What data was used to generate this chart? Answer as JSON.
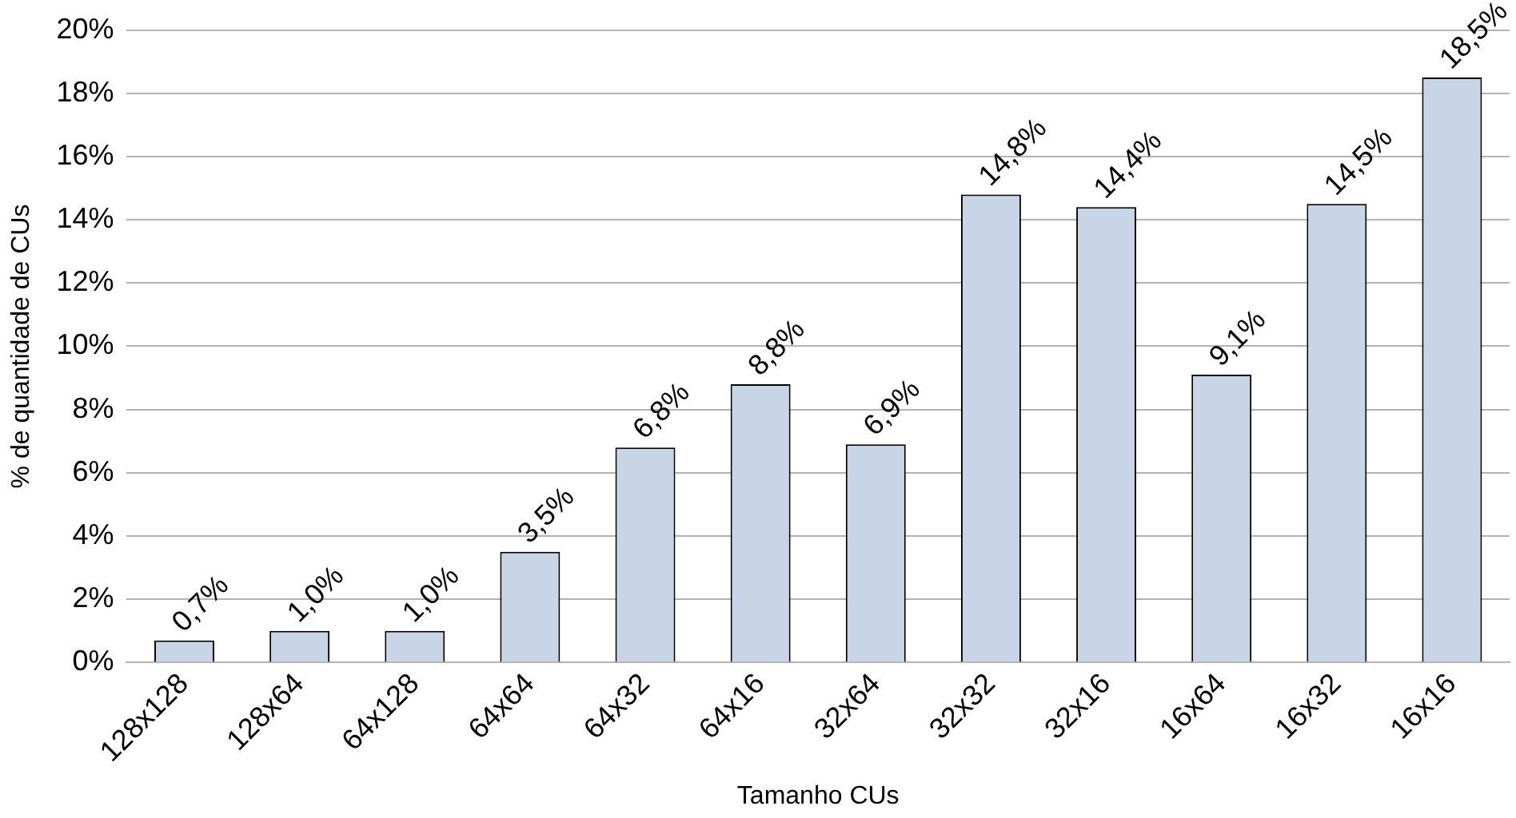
{
  "chart_data": {
    "type": "bar",
    "xlabel": "Tamanho CUs",
    "ylabel": "% de quantidade de CUs",
    "categories": [
      "128x128",
      "128x64",
      "64x128",
      "64x64",
      "64x32",
      "64x16",
      "32x64",
      "32x32",
      "32x16",
      "16x64",
      "16x32",
      "16x16"
    ],
    "values": [
      0.7,
      1.0,
      1.0,
      3.5,
      6.8,
      8.8,
      6.9,
      14.8,
      14.4,
      9.1,
      14.5,
      18.5
    ],
    "value_labels": [
      "0,7%",
      "1,0%",
      "1,0%",
      "3,5%",
      "6,8%",
      "8,8%",
      "6,9%",
      "14,8%",
      "14,4%",
      "9,1%",
      "14,5%",
      "18,5%"
    ],
    "color": "#c8d5e6",
    "ylim": [
      0,
      20
    ],
    "yticks": [
      {
        "value": 0,
        "label": "0%"
      },
      {
        "value": 2,
        "label": "2%"
      },
      {
        "value": 4,
        "label": "4%"
      },
      {
        "value": 6,
        "label": "6%"
      },
      {
        "value": 8,
        "label": "8%"
      },
      {
        "value": 10,
        "label": "10%"
      },
      {
        "value": 12,
        "label": "12%"
      },
      {
        "value": 14,
        "label": "14%"
      },
      {
        "value": 16,
        "label": "16%"
      },
      {
        "value": 18,
        "label": "18%"
      },
      {
        "value": 20,
        "label": "20%"
      }
    ],
    "grid": "y",
    "legend": false
  }
}
